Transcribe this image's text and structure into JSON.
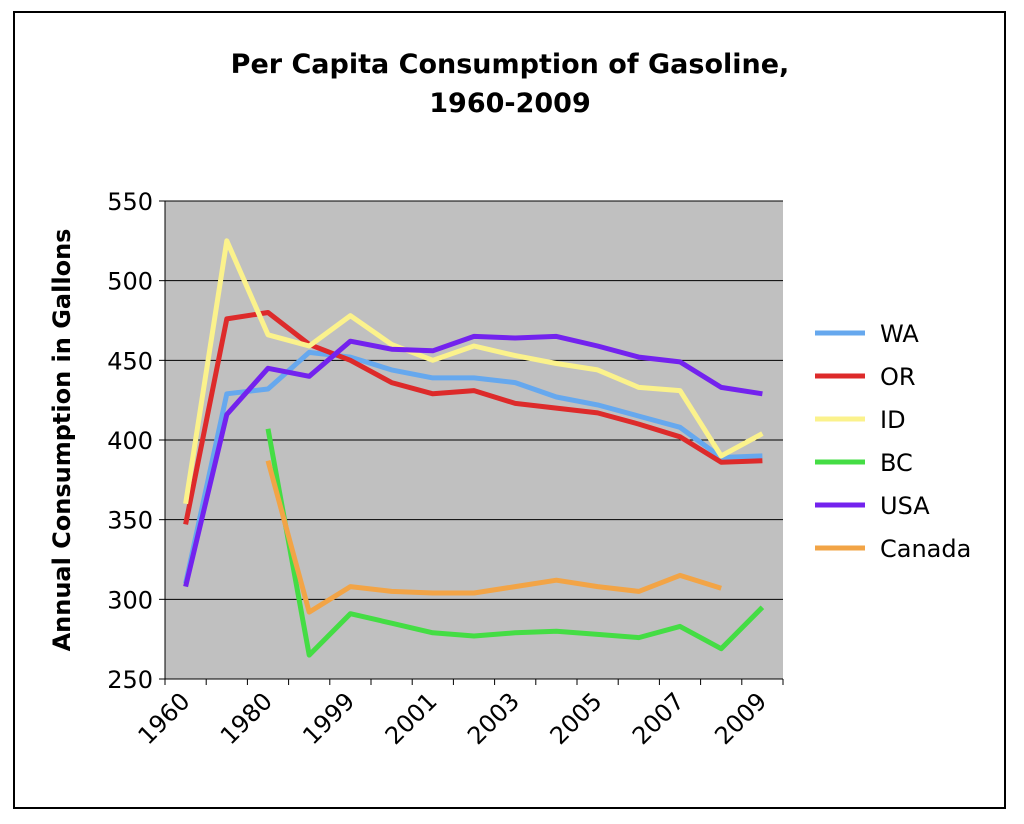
{
  "chart_data": {
    "type": "line",
    "title": "Per Capita Consumption of Gasoline,",
    "subtitle": "1960-2009",
    "y_label": "Annual Consumption in Gallons",
    "categories": [
      "1960",
      null,
      "1980",
      null,
      "1999",
      null,
      "2001",
      null,
      "2003",
      null,
      "2005",
      null,
      "2007",
      null,
      "2009"
    ],
    "series": [
      {
        "name": "WA",
        "color": "#66a8ee",
        "values": [
          310,
          429,
          432,
          455,
          452,
          444,
          439,
          439,
          436,
          427,
          422,
          415,
          408,
          389,
          390
        ]
      },
      {
        "name": "OR",
        "color": "#dd2a2a",
        "values": [
          347,
          476,
          480,
          460,
          450,
          436,
          429,
          431,
          423,
          420,
          417,
          410,
          402,
          386,
          387
        ]
      },
      {
        "name": "ID",
        "color": "#fbf28c",
        "values": [
          360,
          525,
          466,
          459,
          478,
          460,
          450,
          459,
          453,
          448,
          444,
          433,
          431,
          390,
          404
        ]
      },
      {
        "name": "BC",
        "color": "#44dd44",
        "values": [
          null,
          null,
          407,
          265,
          291,
          285,
          279,
          277,
          279,
          280,
          278,
          276,
          283,
          269,
          295
        ]
      },
      {
        "name": "USA",
        "color": "#7322ee",
        "values": [
          308,
          416,
          445,
          440,
          462,
          457,
          456,
          465,
          464,
          465,
          459,
          452,
          449,
          433,
          429
        ]
      },
      {
        "name": "Canada",
        "color": "#f2a446",
        "values": [
          null,
          null,
          387,
          292,
          308,
          305,
          304,
          304,
          308,
          312,
          308,
          305,
          315,
          307,
          null
        ]
      }
    ],
    "ylim": [
      250,
      550
    ],
    "yticks": [
      250,
      300,
      350,
      400,
      450,
      500,
      550
    ],
    "grid": true,
    "legend": "right"
  }
}
